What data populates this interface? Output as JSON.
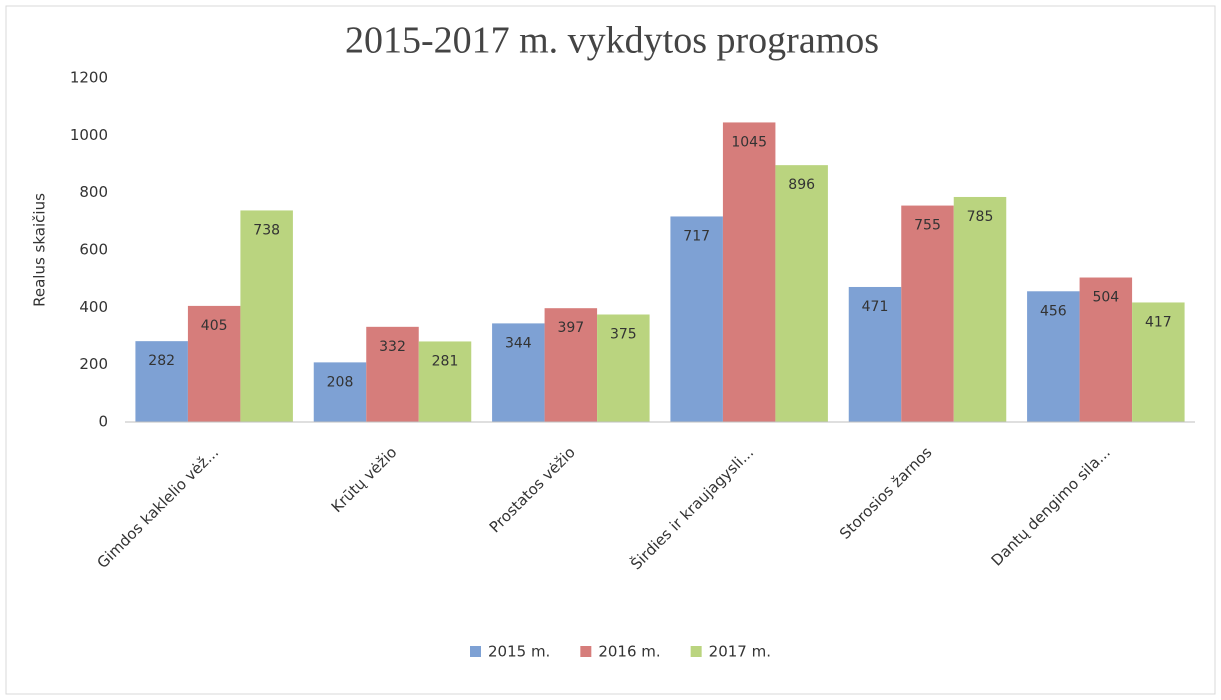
{
  "chart_data": {
    "type": "bar",
    "title": "2015-2017 m. vykdytos programos",
    "y_label": "Realus skaičius",
    "categories": [
      "Gimdos kaklelio vėž...",
      "Krūtų vėžio",
      "Prostatos vėžio",
      "Širdies ir kraujagysli...",
      "Storosios žarnos",
      "Dantų dengimo sila..."
    ],
    "series": [
      {
        "name": "2015 m.",
        "color": "#7ea1d4",
        "values": [
          282,
          208,
          344,
          717,
          471,
          456
        ]
      },
      {
        "name": "2016 m.",
        "color": "#d67d7b",
        "values": [
          405,
          332,
          397,
          1045,
          755,
          504
        ]
      },
      {
        "name": "2017 m.",
        "color": "#bad47f",
        "values": [
          738,
          281,
          375,
          896,
          785,
          417
        ]
      }
    ],
    "ylim": [
      0,
      1200
    ],
    "yticks": [
      0,
      200,
      400,
      600,
      800,
      1000,
      1200
    ],
    "grid": false,
    "data_labels": true,
    "legend": "bottom"
  }
}
